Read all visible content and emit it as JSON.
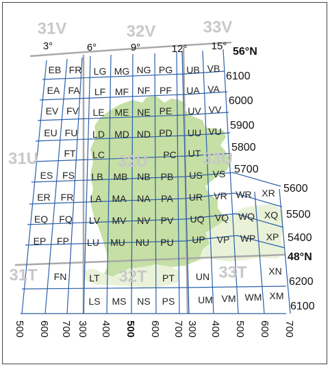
{
  "colors": {
    "grid": "#2b5fa8",
    "zone_boundary": "#a9a9a9",
    "land_dark": "#c5dfa5",
    "land_light": "#e9f2d9",
    "zone_label": "#c8c8c8"
  },
  "zones": {
    "z31V": "31V",
    "z32V": "32V",
    "z33V": "33V",
    "z31U": "31U",
    "z32U": "32U",
    "z33U": "33U",
    "z31T": "31T",
    "z32T": "32T",
    "z33T": "33T"
  },
  "longitudes": {
    "lon3": "3°",
    "lon6": "6°",
    "lon9": "9°",
    "lon12": "12°",
    "lon15": "15°"
  },
  "latitudes": {
    "lat56": "56°N",
    "lat48": "48°N"
  },
  "northings": {
    "n6100a": "6100",
    "n6000": "6000",
    "n5900": "5900",
    "n5800": "5800",
    "n5700": "5700",
    "n5600": "5600",
    "n5500": "5500",
    "n5400": "5400",
    "n6200": "6200",
    "n6100b": "6100"
  },
  "eastings": {
    "e500a": "500",
    "e600a": "600",
    "e700a": "700",
    "e300a": "300",
    "e400a": "400",
    "e500b": "500",
    "e600b": "600",
    "e700b": "700",
    "e300b": "300",
    "e400b": "400",
    "e500c": "500",
    "e600c": "600",
    "e700c": "700"
  },
  "squares": {
    "EB": "EB",
    "FR1": "FR",
    "LG": "LG",
    "MG": "MG",
    "NG": "NG",
    "PG": "PG",
    "UB": "UB",
    "VB": "VB",
    "EA": "EA",
    "FA": "FA",
    "LF": "LF",
    "MF": "MF",
    "NF": "NF",
    "PF": "PF",
    "UA": "UA",
    "VA": "VA",
    "EV": "EV",
    "FV": "FV",
    "LE": "LE",
    "ME": "ME",
    "NE": "NE",
    "PE": "PE",
    "UV": "UV",
    "VV": "VV",
    "EU": "EU",
    "FU": "FU",
    "LD": "LD",
    "MD": "MD",
    "ND": "ND",
    "PD": "PD",
    "UU": "UU",
    "VU": "VU",
    "FT": "FT",
    "LC": "LC",
    "PC": "PC",
    "UT": "UT",
    "ES": "ES",
    "FS": "FS",
    "LB": "LB",
    "MB": "MB",
    "NB": "NB",
    "PB": "PB",
    "US": "US",
    "VS": "VS",
    "ER": "ER",
    "FR2": "FR",
    "LA": "LA",
    "MA": "MA",
    "NA": "NA",
    "PA": "PA",
    "UR": "UR",
    "VR": "VR",
    "WR": "WR",
    "XR": "XR",
    "EQ": "EQ",
    "FQ": "FQ",
    "LV": "LV",
    "MV": "MV",
    "NV": "NV",
    "PV": "PV",
    "UQ": "UQ",
    "VQ": "VQ",
    "WQ": "WQ",
    "XQ": "XQ",
    "EP": "EP",
    "FP": "FP",
    "LU": "LU",
    "MU": "MU",
    "NU": "NU",
    "PU": "PU",
    "UP": "UP",
    "VP": "VP",
    "WP": "WP",
    "XP": "XP",
    "FN": "FN",
    "LT": "LT",
    "PT": "PT",
    "UN": "UN",
    "XN": "XN",
    "LS": "LS",
    "MS": "MS",
    "NS": "NS",
    "PS": "PS",
    "UM": "UM",
    "VM": "VM",
    "WM": "WM",
    "XM": "XM"
  }
}
